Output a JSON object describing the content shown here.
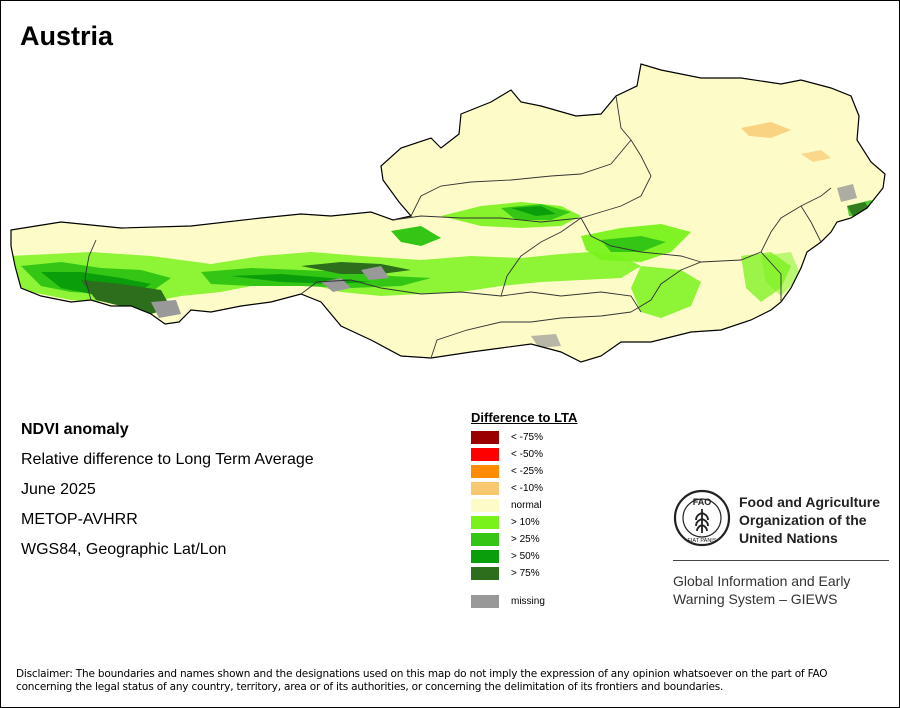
{
  "title": "Austria",
  "info": {
    "heading": "NDVI anomaly",
    "subtitle": "Relative difference to Long Term Average",
    "date": "June 2025",
    "sensor": "METOP-AVHRR",
    "projection": "WGS84, Geographic Lat/Lon"
  },
  "legend": {
    "title": "Difference to LTA",
    "items": [
      {
        "label": "< -75%",
        "color": "#9b0000"
      },
      {
        "label": "< -50%",
        "color": "#ff0000"
      },
      {
        "label": "< -25%",
        "color": "#ff8c00"
      },
      {
        "label": "< -10%",
        "color": "#f8c870"
      },
      {
        "label": "normal",
        "color": "#fdfcc8"
      },
      {
        "label": "> 10%",
        "color": "#79f21c"
      },
      {
        "label": "> 25%",
        "color": "#34c614"
      },
      {
        "label": "> 50%",
        "color": "#0a9e0a"
      },
      {
        "label": "> 75%",
        "color": "#2c6e1c"
      }
    ],
    "missing": {
      "label": "missing",
      "color": "#999999"
    }
  },
  "fao": {
    "emblem_icon": "fao-emblem-icon",
    "emblem_letters": "FAO",
    "emblem_motto": "FIAT PANIS",
    "org_line1": "Food and Agriculture",
    "org_line2": "Organization of the",
    "org_line3": "United Nations",
    "giews_line1": "Global Information and Early",
    "giews_line2": "Warning System – GIEWS"
  },
  "disclaimer": "Disclaimer: The boundaries and names shown and the designations used on this map do not imply the expression of any opinion whatsoever on the part of FAO concerning the legal status of any country, territory, area or of its authorities, or concerning the delimitation of its frontiers and boundaries."
}
